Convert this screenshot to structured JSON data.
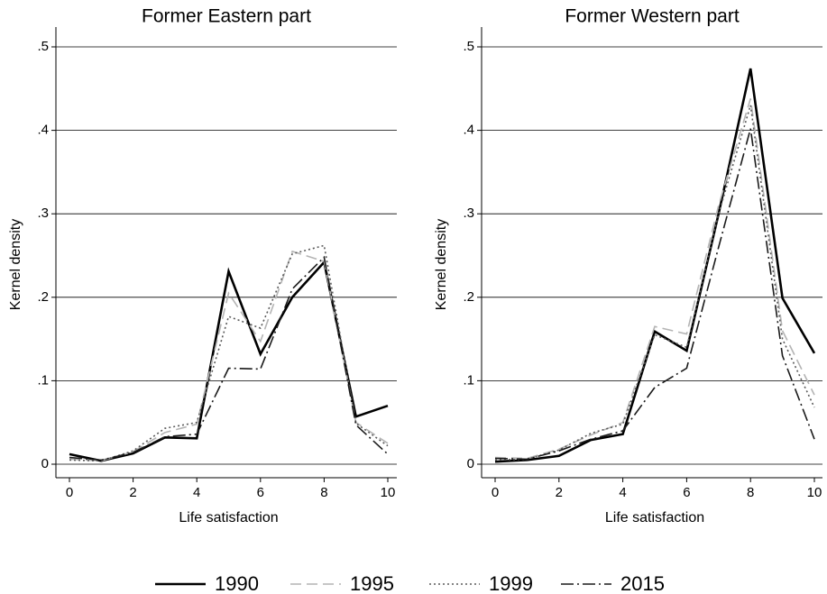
{
  "chart_data": [
    {
      "type": "line",
      "title": "Former Eastern part",
      "xlabel": "Life satisfaction",
      "ylabel": "Kernel density",
      "x": [
        0,
        1,
        2,
        3,
        4,
        5,
        6,
        7,
        8,
        9,
        10
      ],
      "xlim": [
        0,
        10
      ],
      "xticks": [
        0,
        2,
        4,
        6,
        8,
        10
      ],
      "ylim": [
        0,
        0.5
      ],
      "yticks": [
        0,
        {
          "value": 0.1,
          "label": ".1"
        },
        {
          "value": 0.2,
          "label": ".2"
        },
        {
          "value": 0.3,
          "label": ".3"
        },
        {
          "value": 0.4,
          "label": ".4"
        },
        {
          "value": 0.5,
          "label": ".5"
        }
      ],
      "grid": true,
      "series": [
        {
          "name": "1990",
          "color": "#000000",
          "dash": "none",
          "values": [
            0.012,
            0.004,
            0.013,
            0.032,
            0.031,
            0.231,
            0.132,
            0.2,
            0.242,
            0.057,
            0.07
          ]
        },
        {
          "name": "1995",
          "color": "#b4b4b4",
          "dash": "12,6",
          "values": [
            0.006,
            0.004,
            0.015,
            0.038,
            0.048,
            0.205,
            0.147,
            0.255,
            0.243,
            0.05,
            0.025
          ]
        },
        {
          "name": "1999",
          "color": "#5a5a5a",
          "dash": "2,3",
          "values": [
            0.005,
            0.004,
            0.016,
            0.043,
            0.05,
            0.177,
            0.163,
            0.252,
            0.262,
            0.049,
            0.022
          ]
        },
        {
          "name": "2015",
          "color": "#1a1a1a",
          "dash": "14,4,2,4",
          "values": [
            0.008,
            0.005,
            0.014,
            0.033,
            0.036,
            0.115,
            0.114,
            0.21,
            0.248,
            0.047,
            0.012
          ]
        }
      ]
    },
    {
      "type": "line",
      "title": "Former Western part",
      "xlabel": "Life satisfaction",
      "ylabel": "Kernel density",
      "x": [
        0,
        1,
        2,
        3,
        4,
        5,
        6,
        7,
        8,
        9,
        10
      ],
      "xlim": [
        0,
        10
      ],
      "xticks": [
        0,
        2,
        4,
        6,
        8,
        10
      ],
      "ylim": [
        0,
        0.5
      ],
      "yticks": [
        0,
        {
          "value": 0.1,
          "label": ".1"
        },
        {
          "value": 0.2,
          "label": ".2"
        },
        {
          "value": 0.3,
          "label": ".3"
        },
        {
          "value": 0.4,
          "label": ".4"
        },
        {
          "value": 0.5,
          "label": ".5"
        }
      ],
      "grid": true,
      "series": [
        {
          "name": "1990",
          "color": "#000000",
          "dash": "none",
          "values": [
            0.003,
            0.005,
            0.01,
            0.029,
            0.036,
            0.159,
            0.136,
            0.3,
            0.474,
            0.199,
            0.133
          ]
        },
        {
          "name": "1995",
          "color": "#b4b4b4",
          "dash": "12,6",
          "values": [
            0.008,
            0.007,
            0.018,
            0.035,
            0.05,
            0.165,
            0.156,
            0.31,
            0.438,
            0.16,
            0.083
          ]
        },
        {
          "name": "1999",
          "color": "#5a5a5a",
          "dash": "2,3",
          "values": [
            0.005,
            0.006,
            0.017,
            0.037,
            0.048,
            0.155,
            0.14,
            0.3,
            0.43,
            0.15,
            0.068
          ]
        },
        {
          "name": "2015",
          "color": "#1a1a1a",
          "dash": "14,4,2,4",
          "values": [
            0.007,
            0.006,
            0.016,
            0.03,
            0.04,
            0.092,
            0.115,
            0.26,
            0.402,
            0.13,
            0.03
          ]
        }
      ]
    }
  ]
}
